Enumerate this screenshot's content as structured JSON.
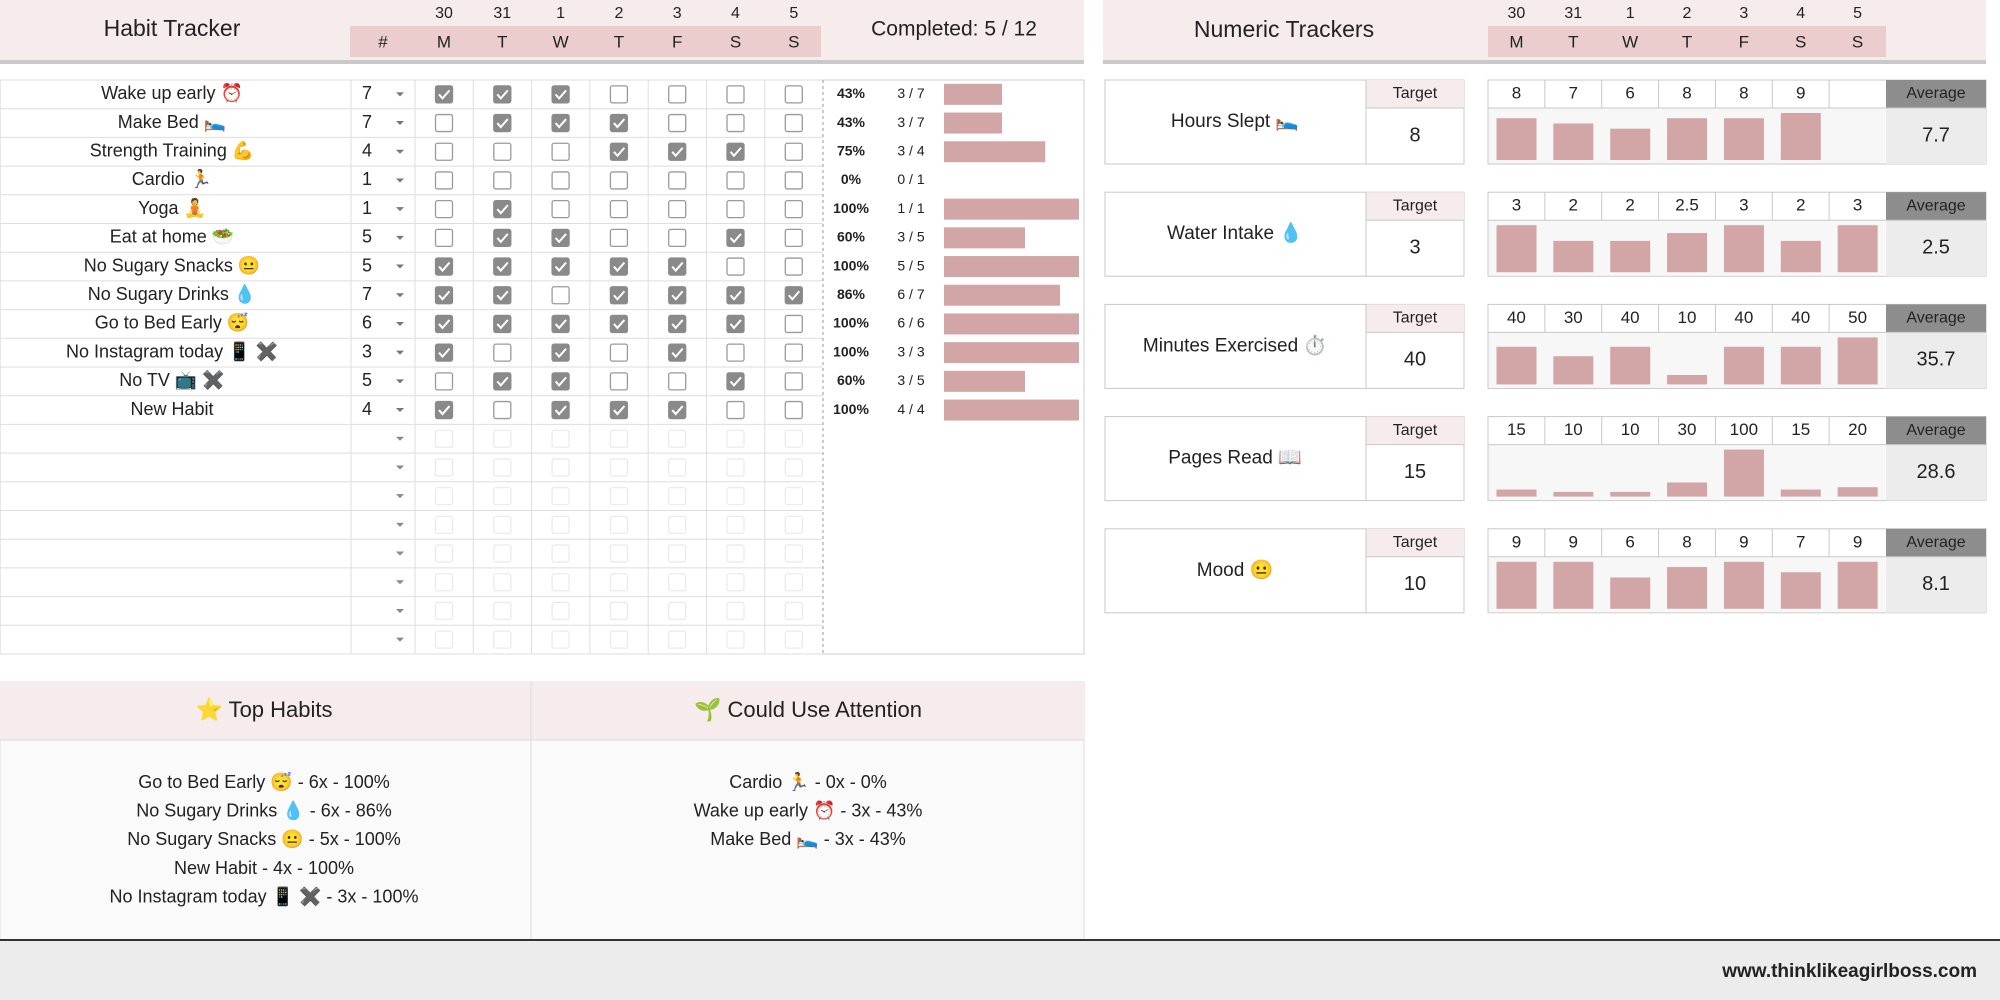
{
  "habit_tracker": {
    "title": "Habit Tracker",
    "dates": [
      "30",
      "31",
      "1",
      "2",
      "3",
      "4",
      "5"
    ],
    "days": [
      "M",
      "T",
      "W",
      "T",
      "F",
      "S",
      "S"
    ],
    "goal_header": "#",
    "completed": "Completed: 5 / 12",
    "habits": [
      {
        "name": "Wake up early ⏰",
        "goal": 7,
        "checks": [
          true,
          true,
          true,
          false,
          false,
          false,
          false
        ],
        "progress": 43,
        "progress_label": "43%",
        "count": "3 / 7"
      },
      {
        "name": "Make Bed 🛌",
        "goal": 7,
        "checks": [
          false,
          true,
          true,
          true,
          false,
          false,
          false
        ],
        "progress": 43,
        "progress_label": "43%",
        "count": "3 / 7"
      },
      {
        "name": "Strength Training 💪",
        "goal": 4,
        "checks": [
          false,
          false,
          false,
          true,
          true,
          true,
          false
        ],
        "progress": 75,
        "progress_label": "75%",
        "count": "3 / 4"
      },
      {
        "name": "Cardio 🏃",
        "goal": 1,
        "checks": [
          false,
          false,
          false,
          false,
          false,
          false,
          false
        ],
        "progress": 0,
        "progress_label": "0%",
        "count": "0 / 1"
      },
      {
        "name": "Yoga 🧘",
        "goal": 1,
        "checks": [
          false,
          true,
          false,
          false,
          false,
          false,
          false
        ],
        "progress": 100,
        "progress_label": "100%",
        "count": "1 / 1"
      },
      {
        "name": "Eat at home 🥗",
        "goal": 5,
        "checks": [
          false,
          true,
          true,
          false,
          false,
          true,
          false
        ],
        "progress": 60,
        "progress_label": "60%",
        "count": "3 / 5"
      },
      {
        "name": "No Sugary Snacks 😐",
        "goal": 5,
        "checks": [
          true,
          true,
          true,
          true,
          true,
          false,
          false
        ],
        "progress": 100,
        "progress_label": "100%",
        "count": "5 / 5"
      },
      {
        "name": "No Sugary Drinks 💧",
        "goal": 7,
        "checks": [
          true,
          true,
          false,
          true,
          true,
          true,
          true
        ],
        "progress": 86,
        "progress_label": "86%",
        "count": "6 / 7"
      },
      {
        "name": "Go to Bed Early 😴",
        "goal": 6,
        "checks": [
          true,
          true,
          true,
          true,
          true,
          true,
          false
        ],
        "progress": 100,
        "progress_label": "100%",
        "count": "6 / 6"
      },
      {
        "name": "No Instagram today 📱 ✖️",
        "goal": 3,
        "checks": [
          true,
          false,
          true,
          false,
          true,
          false,
          false
        ],
        "progress": 100,
        "progress_label": "100%",
        "count": "3 / 3"
      },
      {
        "name": "No TV 📺 ✖️",
        "goal": 5,
        "checks": [
          false,
          true,
          true,
          false,
          false,
          true,
          false
        ],
        "progress": 60,
        "progress_label": "60%",
        "count": "3 / 5"
      },
      {
        "name": "New Habit",
        "goal": 4,
        "checks": [
          true,
          false,
          true,
          true,
          true,
          false,
          false
        ],
        "progress": 100,
        "progress_label": "100%",
        "count": "4 / 4"
      }
    ]
  },
  "numeric_trackers": {
    "title": "Numeric Trackers",
    "dates": [
      "30",
      "31",
      "1",
      "2",
      "3",
      "4",
      "5"
    ],
    "days": [
      "M",
      "T",
      "W",
      "T",
      "F",
      "S",
      "S"
    ],
    "trackers": [
      {
        "name": "Hours Slept 🛌",
        "target_label": "Target",
        "target": 8,
        "values": [
          8,
          7,
          6,
          8,
          8,
          9,
          null
        ],
        "average_label": "Average",
        "average": 7.7
      },
      {
        "name": "Water Intake 💧",
        "target_label": "Target",
        "target": 3,
        "values": [
          3,
          2,
          2,
          2.5,
          3,
          2,
          3
        ],
        "average_label": "Average",
        "average": 2.5
      },
      {
        "name": "Minutes Exercised ⏱️",
        "target_label": "Target",
        "target": 40,
        "values": [
          40,
          30,
          40,
          10,
          40,
          40,
          50
        ],
        "average_label": "Average",
        "average": 35.7
      },
      {
        "name": "Pages Read 📖",
        "target_label": "Target",
        "target": 15,
        "values": [
          15,
          10,
          10,
          30,
          100,
          15,
          20
        ],
        "average_label": "Average",
        "average": 28.6
      },
      {
        "name": "Mood 😐",
        "target_label": "Target",
        "target": 10,
        "values": [
          9,
          9,
          6,
          8,
          9,
          7,
          9
        ],
        "average_label": "Average",
        "average": 8.1
      }
    ]
  },
  "top_habits": {
    "title": "⭐ Top Habits",
    "items": [
      "Go to Bed Early 😴 - 6x - 100%",
      "No Sugary Drinks 💧 - 6x - 86%",
      "No Sugary Snacks 😐 - 5x - 100%",
      "New Habit - 4x - 100%",
      "No Instagram today 📱 ✖️ - 3x - 100%"
    ]
  },
  "could_use_attention": {
    "title": "🌱 Could Use Attention",
    "items": [
      "Cardio 🏃 - 0x - 0%",
      "Wake up early ⏰ - 3x - 43%",
      "Make Bed 🛌 - 3x - 43%"
    ]
  },
  "footer": "www.thinklikeagirlboss.com"
}
